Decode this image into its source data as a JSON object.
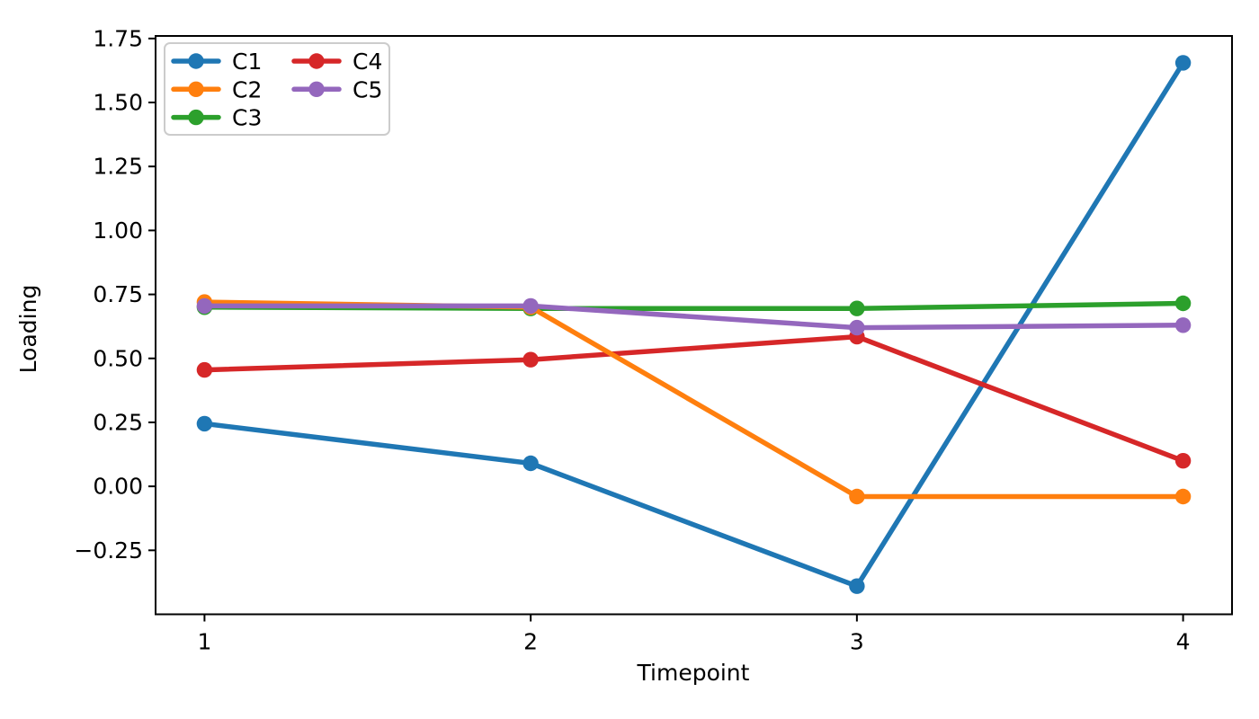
{
  "figure": {
    "background": "#ffffff",
    "axis_color": "#000000",
    "text_color": "#000000",
    "legend_border_color": "#cccccc"
  },
  "chart_data": {
    "type": "line",
    "title": "",
    "xlabel": "Timepoint",
    "ylabel": "Loading",
    "x": [
      1,
      2,
      3,
      4
    ],
    "series": [
      {
        "name": "C1",
        "color": "#1f77b4",
        "values": [
          0.245,
          0.09,
          -0.39,
          1.655
        ]
      },
      {
        "name": "C2",
        "color": "#ff7f0e",
        "values": [
          0.72,
          0.7,
          -0.04,
          -0.04
        ]
      },
      {
        "name": "C3",
        "color": "#2ca02c",
        "values": [
          0.7,
          0.695,
          0.695,
          0.715
        ]
      },
      {
        "name": "C4",
        "color": "#d62728",
        "values": [
          0.455,
          0.495,
          0.585,
          0.1
        ]
      },
      {
        "name": "C5",
        "color": "#9467bd",
        "values": [
          0.705,
          0.705,
          0.62,
          0.63
        ]
      }
    ],
    "draw_order": [
      "C1",
      "C3",
      "C4",
      "C2",
      "C5"
    ],
    "marker": "circle",
    "xlim": [
      0.85,
      4.15
    ],
    "ylim": [
      -0.5,
      1.76
    ],
    "xticks": {
      "values": [
        1,
        2,
        3,
        4
      ],
      "labels": [
        "1",
        "2",
        "3",
        "4"
      ]
    },
    "yticks": {
      "values": [
        1.75,
        1.5,
        1.25,
        1.0,
        0.75,
        0.5,
        0.25,
        0.0,
        -0.25
      ],
      "labels": [
        "1.75",
        "1.50",
        "1.25",
        "1.00",
        "0.75",
        "0.50",
        "0.25",
        "0.00",
        "−0.25"
      ]
    },
    "grid": false,
    "legend": {
      "position": "upper-left",
      "columns": 2,
      "rows_per_column": 3,
      "entries": [
        "C1",
        "C2",
        "C3",
        "C4",
        "C5"
      ]
    }
  }
}
